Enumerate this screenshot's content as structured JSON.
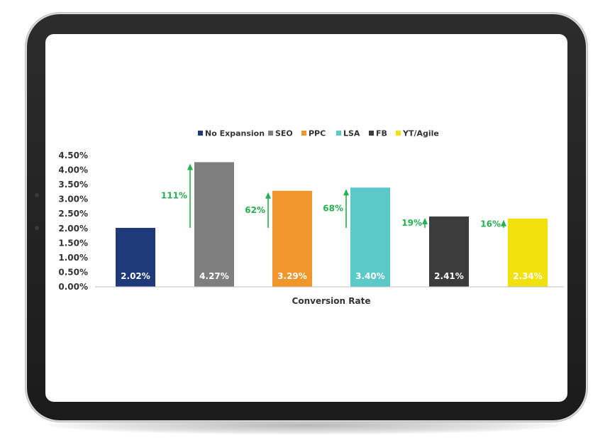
{
  "chart_data": {
    "type": "bar",
    "xlabel": "Conversion Rate",
    "ylim": [
      0,
      4.5
    ],
    "ytick_step": 0.5,
    "yticks": [
      "0.00%",
      "0.50%",
      "1.00%",
      "1.50%",
      "2.00%",
      "2.50%",
      "3.00%",
      "3.50%",
      "4.00%",
      "4.50%"
    ],
    "legend_position": "top",
    "grid": false,
    "series": [
      {
        "name": "No Expansion",
        "value": 2.02,
        "label": "2.02%",
        "color": "#1f3a78",
        "increase": ""
      },
      {
        "name": "SEO",
        "value": 4.27,
        "label": "4.27%",
        "color": "#7f7f7f",
        "increase": "111%"
      },
      {
        "name": "PPC",
        "value": 3.29,
        "label": "3.29%",
        "color": "#f0962a",
        "increase": "62%"
      },
      {
        "name": "LSA",
        "value": 3.4,
        "label": "3.40%",
        "color": "#5cc9c9",
        "increase": "68%"
      },
      {
        "name": "FB",
        "value": 2.41,
        "label": "2.41%",
        "color": "#3c3c3c",
        "increase": "19%"
      },
      {
        "name": "YT/Agile",
        "value": 2.34,
        "label": "2.34%",
        "color": "#f2e10d",
        "increase": "16%"
      }
    ],
    "arrow_color": "#27b050"
  }
}
